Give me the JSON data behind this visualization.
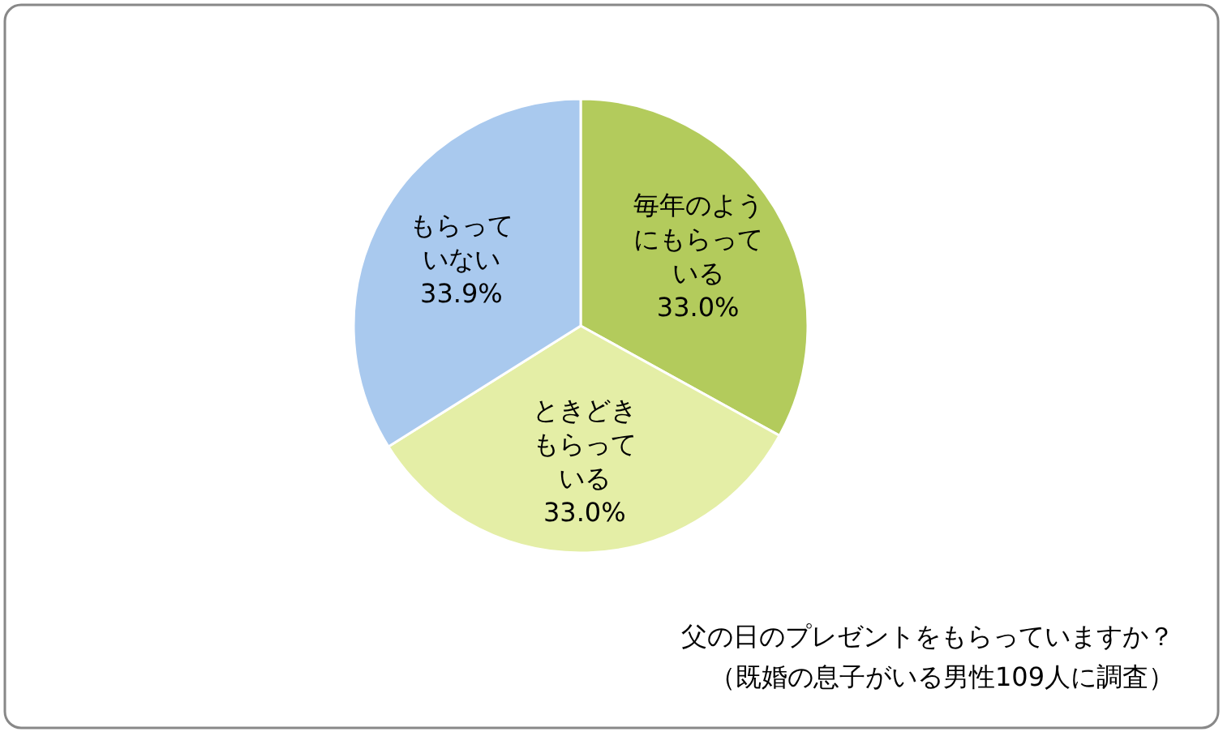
{
  "chart_data": {
    "type": "pie",
    "title": "父の日のプレゼントをもらっていますか？",
    "subtitle": "（既婚の息子がいる男性109人に調査）",
    "categories": [
      "毎年のようにもらっている",
      "ときどきもらっている",
      "もらっていない"
    ],
    "values": [
      33.0,
      33.0,
      33.9
    ],
    "value_labels": [
      "33.0%",
      "33.0%",
      "33.9%"
    ],
    "colors": [
      "#b3cb5c",
      "#e4eea6",
      "#a9c9ee"
    ]
  }
}
